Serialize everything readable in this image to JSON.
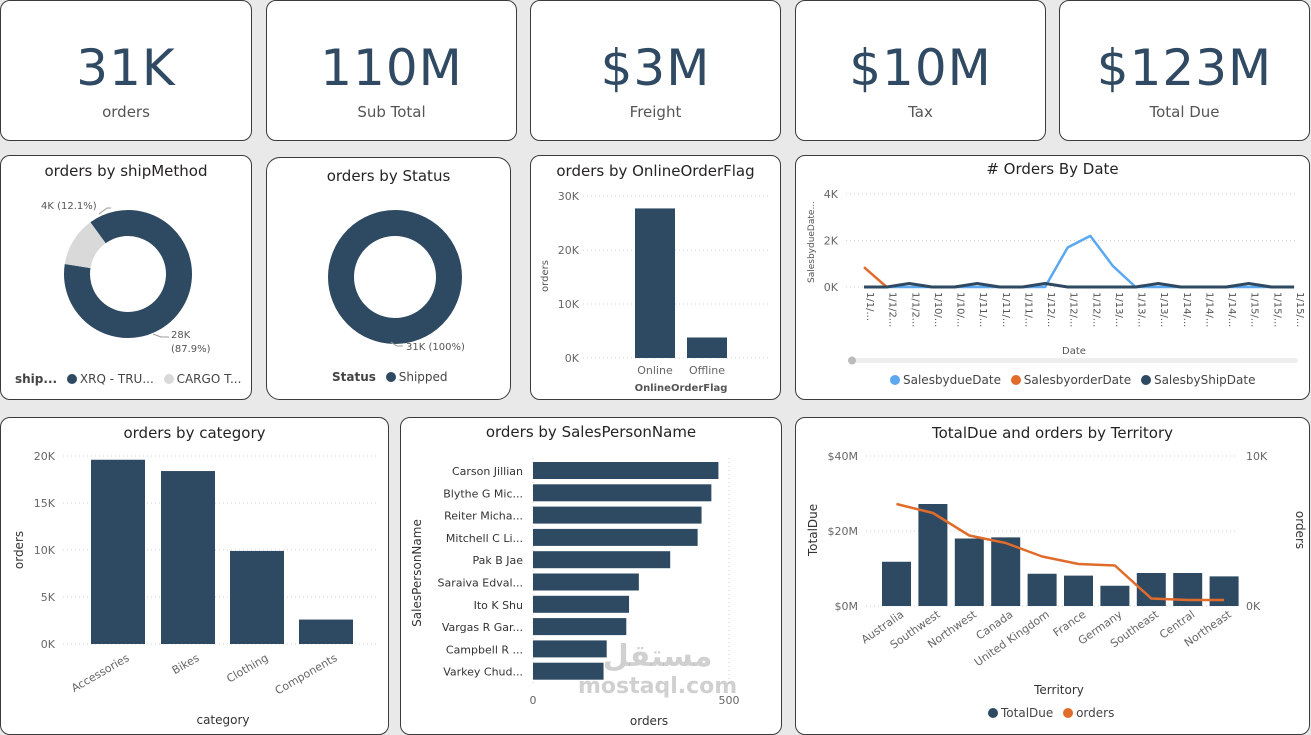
{
  "kpis": [
    {
      "value": "31K",
      "label": "orders"
    },
    {
      "value": "110M",
      "label": "Sub Total"
    },
    {
      "value": "$3M",
      "label": "Freight"
    },
    {
      "value": "$10M",
      "label": "Tax"
    },
    {
      "value": "$123M",
      "label": "Total Due"
    }
  ],
  "colors": {
    "navy": "#2e4a62",
    "grey": "#d9d9d9",
    "blue": "#5ba8f0",
    "orange": "#e06c2c"
  },
  "watermark": {
    "arabic": "مستقل",
    "latin": "mostaql.com"
  },
  "chart_data": [
    {
      "id": "ship",
      "type": "pie",
      "title": "orders by shipMethod",
      "slices": [
        {
          "name": "XRQ - TRU...",
          "value": 28000,
          "label": "28K",
          "pct": "(87.9%)"
        },
        {
          "name": "CARGO T...",
          "value": 4000,
          "label": "4K (12.1%)",
          "pct": ""
        }
      ],
      "legend_title": "ship...",
      "legend": [
        "XRQ - TRU...",
        "CARGO T..."
      ]
    },
    {
      "id": "status",
      "type": "pie",
      "title": "orders by Status",
      "slices": [
        {
          "name": "Shipped",
          "value": 31000,
          "label": "31K (100%)"
        }
      ],
      "legend_title": "Status",
      "legend": [
        "Shipped"
      ]
    },
    {
      "id": "online",
      "type": "bar",
      "title": "orders by OnlineOrderFlag",
      "categories": [
        "Online",
        "Offline"
      ],
      "values": [
        27700,
        3800
      ],
      "ylabel": "orders",
      "xlabel": "OnlineOrderFlag",
      "yticks": [
        "30K",
        "20K",
        "10K",
        "0K"
      ],
      "ylim": [
        0,
        30000
      ]
    },
    {
      "id": "date",
      "type": "line",
      "title": "# Orders By Date",
      "xlabel": "Date",
      "ylabel": "SalesbydueDate...",
      "yticks": [
        "4K",
        "2K",
        "0K"
      ],
      "ylim": [
        0,
        4000
      ],
      "x": [
        "1/1/...",
        "1/1/2...",
        "1/1/2...",
        "1/10/...",
        "1/10/...",
        "1/11/...",
        "1/11/...",
        "1/11/...",
        "1/12/...",
        "1/12/...",
        "1/12/...",
        "1/13/...",
        "1/13/...",
        "1/13/...",
        "1/14/...",
        "1/14/...",
        "1/14/...",
        "1/15/...",
        "1/15/...",
        "1/15/..."
      ],
      "series": [
        {
          "name": "SalesbydueDate",
          "values": [
            0,
            0,
            0,
            0,
            0,
            0,
            0,
            0,
            0,
            1700,
            2200,
            900,
            0,
            0,
            0,
            0,
            0,
            0,
            0,
            0
          ]
        },
        {
          "name": "SalesbyorderDate",
          "values": [
            850,
            0,
            null,
            null,
            null,
            null,
            null,
            null,
            null,
            null,
            null,
            null,
            null,
            null,
            null,
            null,
            null,
            null,
            null,
            null
          ]
        },
        {
          "name": "SalesbyShipDate",
          "values": [
            0,
            0,
            150,
            0,
            0,
            150,
            0,
            0,
            150,
            0,
            0,
            0,
            0,
            150,
            0,
            0,
            0,
            150,
            0,
            0
          ]
        }
      ]
    },
    {
      "id": "category",
      "type": "bar",
      "title": "orders by category",
      "categories": [
        "Accessories",
        "Bikes",
        "Clothing",
        "Components"
      ],
      "values": [
        19600,
        18400,
        9900,
        2600
      ],
      "ylabel": "orders",
      "xlabel": "category",
      "yticks": [
        "20K",
        "15K",
        "10K",
        "5K",
        "0K"
      ],
      "ylim": [
        0,
        20000
      ]
    },
    {
      "id": "salesperson",
      "type": "bar",
      "orientation": "horizontal",
      "title": "orders by SalesPersonName",
      "categories": [
        "Carson Jillian",
        "Blythe G Mic...",
        "Reiter Micha...",
        "Mitchell C Li...",
        "Pak B Jae",
        "Saraiva Edval...",
        "Ito K Shu",
        "Vargas R Gar...",
        "Campbell R ...",
        "Varkey Chud..."
      ],
      "values": [
        473,
        455,
        430,
        420,
        350,
        270,
        245,
        238,
        188,
        180
      ],
      "xlabel": "orders",
      "ylabel": "SalesPersonName",
      "xticks": [
        "0",
        "500"
      ],
      "xlim": [
        0,
        500
      ]
    },
    {
      "id": "territory",
      "type": "bar",
      "title": "TotalDue and orders by Territory",
      "categories": [
        "Australia",
        "Southwest",
        "Northwest",
        "Canada",
        "United Kingdom",
        "France",
        "Germany",
        "Southeast",
        "Central",
        "Northeast"
      ],
      "series": [
        {
          "name": "TotalDue",
          "values": [
            11800000,
            27200000,
            18000000,
            18300000,
            8600000,
            8100000,
            5400000,
            8800000,
            8800000,
            7900000
          ]
        },
        {
          "name": "orders",
          "values": [
            6800,
            6200,
            4700,
            4200,
            3300,
            2800,
            2700,
            500,
            400,
            400
          ]
        }
      ],
      "xlabel": "Territory",
      "ylabel": "TotalDue",
      "y2label": "orders",
      "yticks": [
        "$40M",
        "$20M",
        "$0M"
      ],
      "y2ticks": [
        "10K",
        "0K"
      ],
      "ylim": [
        0,
        40000000
      ],
      "y2lim": [
        0,
        10000
      ]
    }
  ]
}
